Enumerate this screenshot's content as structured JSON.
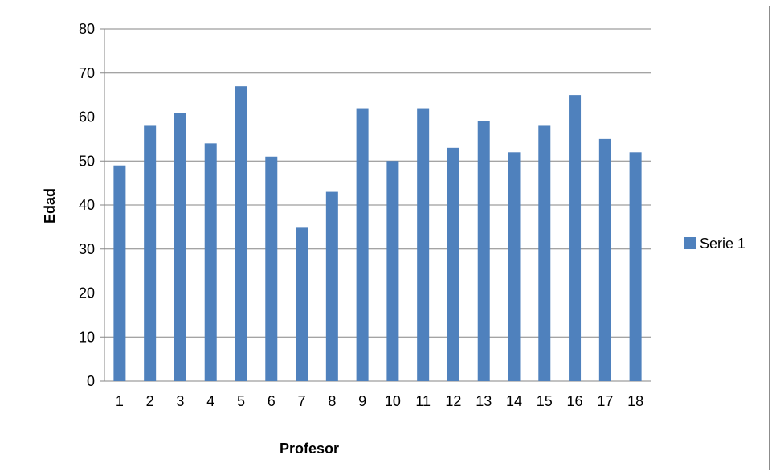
{
  "chart_data": {
    "type": "bar",
    "categories": [
      "1",
      "2",
      "3",
      "4",
      "5",
      "6",
      "7",
      "8",
      "9",
      "10",
      "11",
      "12",
      "13",
      "14",
      "15",
      "16",
      "17",
      "18"
    ],
    "series": [
      {
        "name": "Serie 1",
        "color": "#4f81bd",
        "values": [
          49,
          58,
          61,
          54,
          67,
          51,
          35,
          43,
          62,
          50,
          62,
          53,
          59,
          52,
          58,
          65,
          55,
          52
        ]
      }
    ],
    "title": "",
    "xlabel": "Profesor",
    "ylabel": "Edad",
    "ylim": [
      0,
      80
    ],
    "yticks": [
      0,
      10,
      20,
      30,
      40,
      50,
      60,
      70,
      80
    ],
    "grid": true,
    "legend_position": "right",
    "colors": {
      "gridline": "#868686",
      "frame": "#8c8c8c"
    }
  }
}
